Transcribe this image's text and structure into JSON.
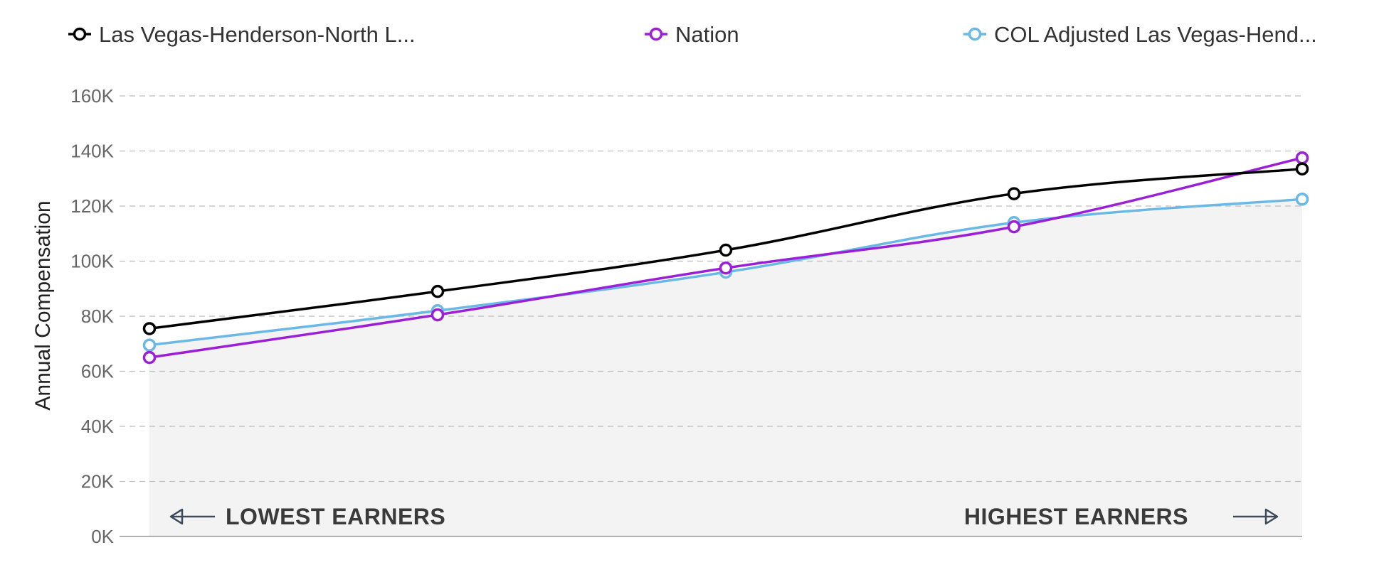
{
  "colors": {
    "series_0": "#000000",
    "series_1": "#9b1fd6",
    "series_2": "#6ab8e6",
    "grid": "#bdbdbd",
    "fill": "#f3f3f3",
    "arrow": "#3d4a5c"
  },
  "legend": {
    "items": [
      {
        "label": "Las Vegas-Henderson-North L...",
        "icon": "circle-marker-icon",
        "color_key": "series_0"
      },
      {
        "label": "Nation",
        "icon": "circle-marker-icon",
        "color_key": "series_1"
      },
      {
        "label": "COL Adjusted Las Vegas-Hend...",
        "icon": "circle-marker-icon",
        "color_key": "series_2"
      }
    ],
    "placement": "top"
  },
  "annotations": {
    "lowest": "LOWEST EARNERS",
    "highest": "HIGHEST EARNERS",
    "left_arrow_icon": "left-arrow-icon",
    "right_arrow_icon": "right-arrow-icon"
  },
  "chart_data": {
    "type": "line",
    "title": "",
    "xlabel": "",
    "ylabel": "Annual Compensation",
    "x": [
      1,
      2,
      3,
      4,
      5
    ],
    "ylim": [
      0,
      160000
    ],
    "yticks": [
      0,
      20000,
      40000,
      60000,
      80000,
      100000,
      120000,
      140000,
      160000
    ],
    "ytick_labels": [
      "0K",
      "20K",
      "40K",
      "60K",
      "80K",
      "100K",
      "120K",
      "140K",
      "160K"
    ],
    "grid": true,
    "series": [
      {
        "name": "Las Vegas-Henderson-North L...",
        "values": [
          75500,
          89000,
          104000,
          124500,
          133500
        ]
      },
      {
        "name": "Nation",
        "values": [
          65000,
          80500,
          97500,
          112500,
          137500
        ]
      },
      {
        "name": "COL Adjusted Las Vegas-Hend...",
        "values": [
          69500,
          82000,
          96000,
          114000,
          122500
        ]
      }
    ],
    "shaded_area_series": 2
  }
}
